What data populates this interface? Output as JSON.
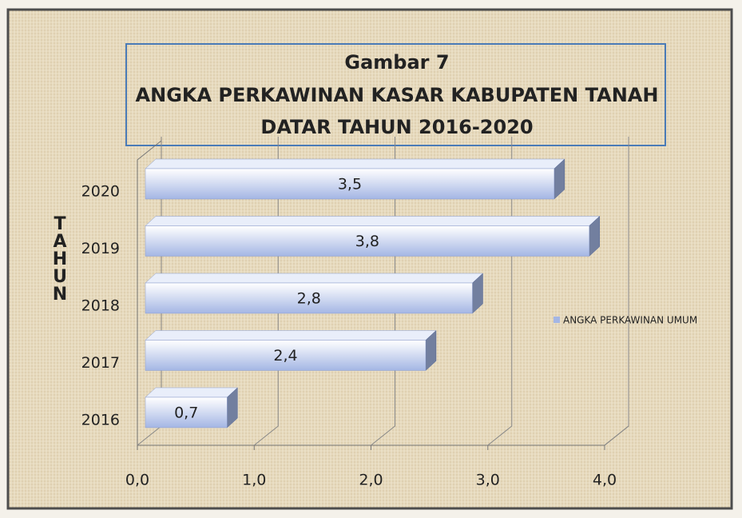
{
  "chart_data": {
    "type": "bar3d",
    "orientation": "horizontal",
    "title": [
      "Gambar 7",
      "ANGKA PERKAWINAN KASAR KABUPATEN TANAH",
      "DATAR TAHUN 2016-2020"
    ],
    "y_label": "TAHUN",
    "categories": [
      "2016",
      "2017",
      "2018",
      "2019",
      "2020"
    ],
    "series": [
      {
        "name": "ANGKA PERKAWINAN UMUM",
        "color": "#a4b6e4",
        "values": [
          0.7,
          2.4,
          2.8,
          3.8,
          3.5
        ],
        "value_labels": [
          "0,7",
          "2,4",
          "2,8",
          "3,8",
          "3,5"
        ]
      }
    ],
    "xlim": [
      0,
      4
    ],
    "xticks": [
      {
        "value": 0,
        "label": "0,0"
      },
      {
        "value": 1,
        "label": "1,0"
      },
      {
        "value": 2,
        "label": "2,0"
      },
      {
        "value": 3,
        "label": "3,0"
      },
      {
        "value": 4,
        "label": "4,0"
      }
    ],
    "grid": true,
    "legend": "right"
  }
}
